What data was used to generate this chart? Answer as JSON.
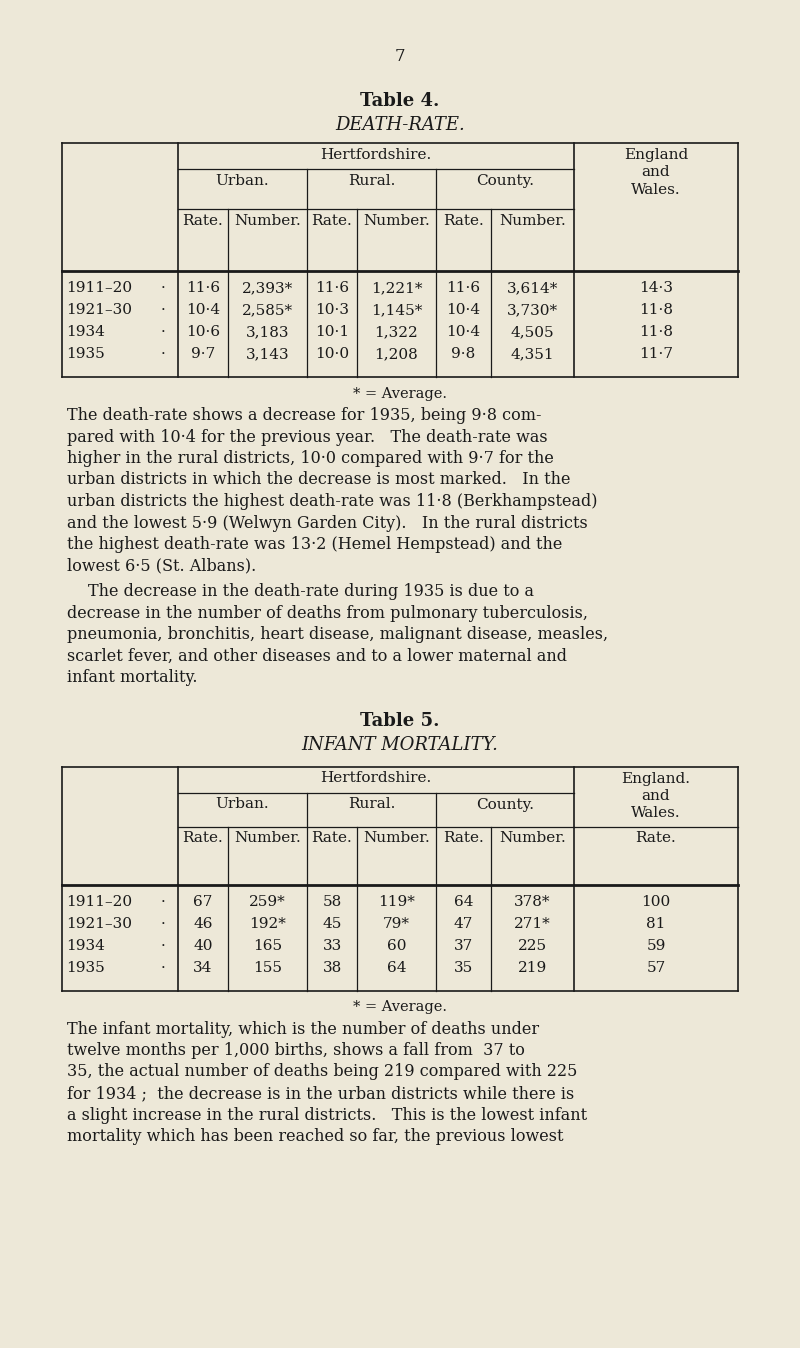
{
  "bg_color": "#ede8d8",
  "text_color": "#1a1a1a",
  "page_number": "7",
  "table4_title": "Table 4.",
  "table4_subtitle": "DEATH-RATE.",
  "table4_herts": "Hertfordshire.",
  "table4_ew": "England\nand\nWales.",
  "table4_urban": "Urban.",
  "table4_rural": "Rural.",
  "table4_county": "County.",
  "table4_rate": "Rate.",
  "table4_number": "Number.",
  "table4_rows": [
    [
      "1911–20",
      "·",
      "11·6",
      "2,393*",
      "11·6",
      "1,221*",
      "11·6",
      "3,614*",
      "14·3"
    ],
    [
      "1921–30",
      "·",
      "10·4",
      "2,585*",
      "10·3",
      "1,145*",
      "10·4",
      "3,730*",
      "11·8"
    ],
    [
      "1934",
      "·",
      "10·6",
      "3,183",
      "10·1",
      "1,322",
      "10·4",
      "4,505",
      "11·8"
    ],
    [
      "1935",
      "·",
      "9·7",
      "3,143",
      "10·0",
      "1,208",
      "9·8",
      "4,351",
      "11·7"
    ]
  ],
  "table4_footnote": "* = Average.",
  "table4_para1": "The death-rate shows a decrease for 1935, being 9·8 com-\npared with 10·4 for the previous year.   The death-rate was\nhigher in the rural districts, 10·0 compared with 9·7 for the\nurban districts in which the decrease is most marked.   In the\nurban districts the highest death-rate was 11·8 (Berkhampstead)\nand the lowest 5·9 (Welwyn Garden City).   In the rural districts\nthe highest death-rate was 13·2 (Hemel Hempstead) and the\nlowest 6·5 (St. Albans).",
  "table4_para2": "The decrease in the death-rate during 1935 is due to a\ndecrease in the number of deaths from pulmonary tuberculosis,\npneumonia, bronchitis, heart disease, malignant disease, measles,\nscarlet fever, and other diseases and to a lower maternal and\ninfant mortality.",
  "table5_title": "Table 5.",
  "table5_subtitle": "INFANT MORTALITY.",
  "table5_herts": "Hertfordshire.",
  "table5_ew": "England.\nand\nWales.",
  "table5_urban": "Urban.",
  "table5_rural": "Rural.",
  "table5_county": "County.",
  "table5_rate": "Rate.",
  "table5_number": "Number.",
  "table5_ew_rate": "Rate.",
  "table5_rows": [
    [
      "1911–20",
      "·",
      "67",
      "259*",
      "58",
      "119*",
      "64",
      "378*",
      "100"
    ],
    [
      "1921–30",
      "·",
      "46",
      "192*",
      "45",
      "79*",
      "47",
      "271*",
      "81"
    ],
    [
      "1934",
      "·",
      "40",
      "165",
      "33",
      "60",
      "37",
      "225",
      "59"
    ],
    [
      "1935",
      "·",
      "34",
      "155",
      "38",
      "64",
      "35",
      "219",
      "57"
    ]
  ],
  "table5_footnote": "* = Average.",
  "table5_para1": "The infant mortality, which is the number of deaths under\ntwelve months per 1,000 births, shows a fall from  37 to\n35, the actual number of deaths being 219 compared with 225\nfor 1934 ;  the decrease is in the urban districts while there is\na slight increase in the rural districts.   This is the lowest infant\nmortality which has been reached so far, the previous lowest"
}
